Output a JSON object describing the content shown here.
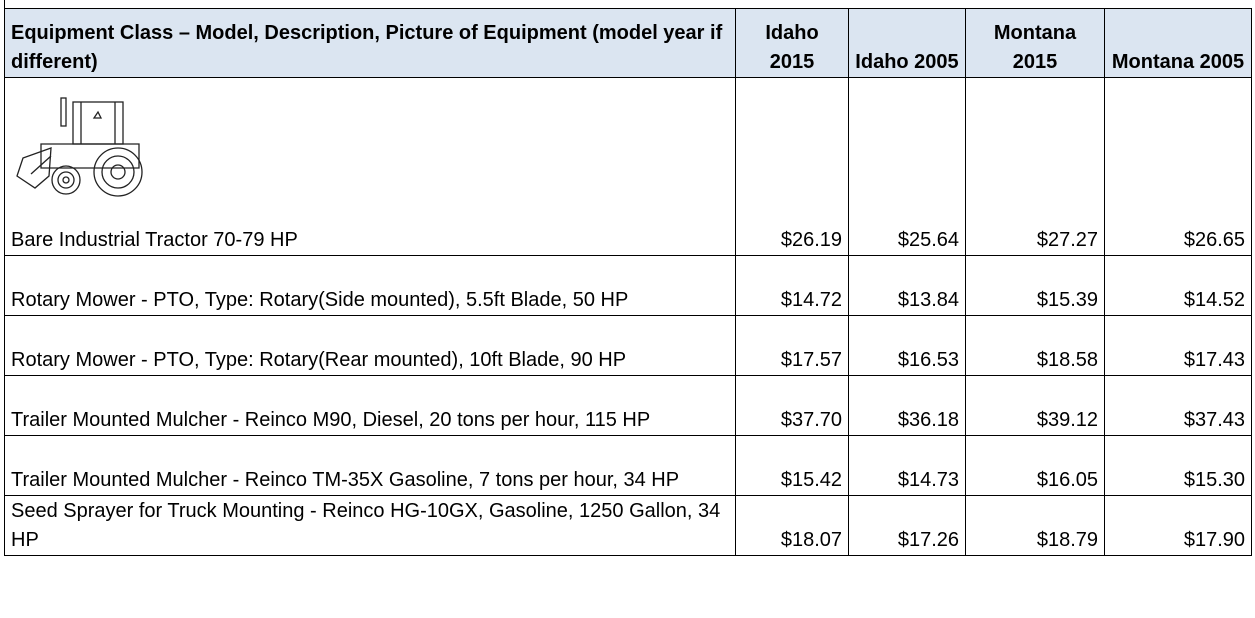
{
  "table": {
    "header": [
      "Equipment Class – Model, Description, Picture of Equipment (model year if different)",
      "Idaho 2015",
      "Idaho 2005",
      "Montana 2015",
      "Montana 2005"
    ],
    "rows": [
      [
        "Bare Industrial Tractor 70-79 HP",
        "$26.19",
        "$25.64",
        "$27.27",
        "$26.65"
      ],
      [
        "Rotary Mower - PTO, Type: Rotary(Side mounted), 5.5ft Blade, 50 HP",
        "$14.72",
        "$13.84",
        "$15.39",
        "$14.52"
      ],
      [
        "Rotary Mower - PTO, Type: Rotary(Rear mounted), 10ft Blade, 90 HP",
        "$17.57",
        "$16.53",
        "$18.58",
        "$17.43"
      ],
      [
        "Trailer Mounted Mulcher - Reinco M90, Diesel, 20 tons per hour, 115 HP",
        "$37.70",
        "$36.18",
        "$39.12",
        "$37.43"
      ],
      [
        "Trailer Mounted Mulcher - Reinco TM-35X Gasoline, 7 tons per hour, 34 HP",
        "$15.42",
        "$14.73",
        "$16.05",
        "$15.30"
      ],
      [
        "Seed Sprayer for Truck Mounting - Reinco HG-10GX, Gasoline, 1250 Gallon, 34 HP",
        "$18.07",
        "$17.26",
        "$18.79",
        "$17.90"
      ]
    ]
  }
}
